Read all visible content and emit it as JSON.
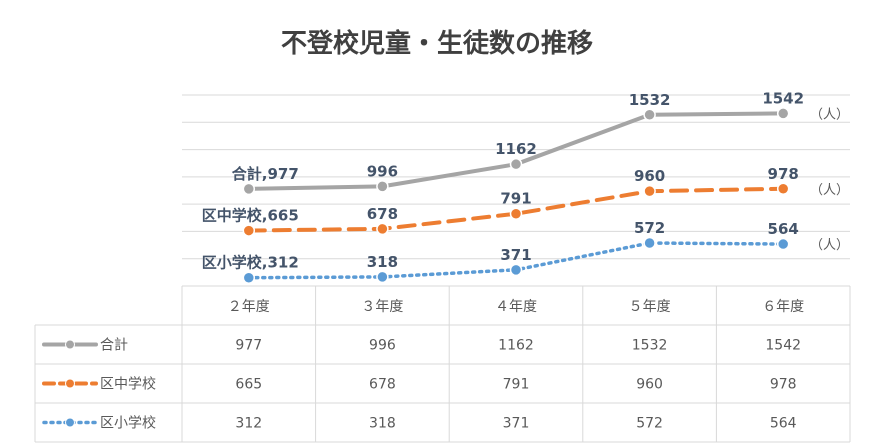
{
  "chart_data": {
    "type": "line",
    "title": "不登校児童・生徒数の推移",
    "categories": [
      "２年度",
      "３年度",
      "４年度",
      "５年度",
      "６年度"
    ],
    "ylim": [
      250,
      1680
    ],
    "grid": true,
    "unit_label": "（人）",
    "series": [
      {
        "name": "合計",
        "values": [
          977,
          996,
          1162,
          1532,
          1542
        ],
        "color": "#a5a5a5",
        "style": "solid"
      },
      {
        "name": "区中学校",
        "values": [
          665,
          678,
          791,
          960,
          978
        ],
        "color": "#ed7d31",
        "style": "dashed"
      },
      {
        "name": "区小学校",
        "values": [
          312,
          318,
          371,
          572,
          564
        ],
        "color": "#5b9bd5",
        "style": "dotted"
      }
    ]
  }
}
